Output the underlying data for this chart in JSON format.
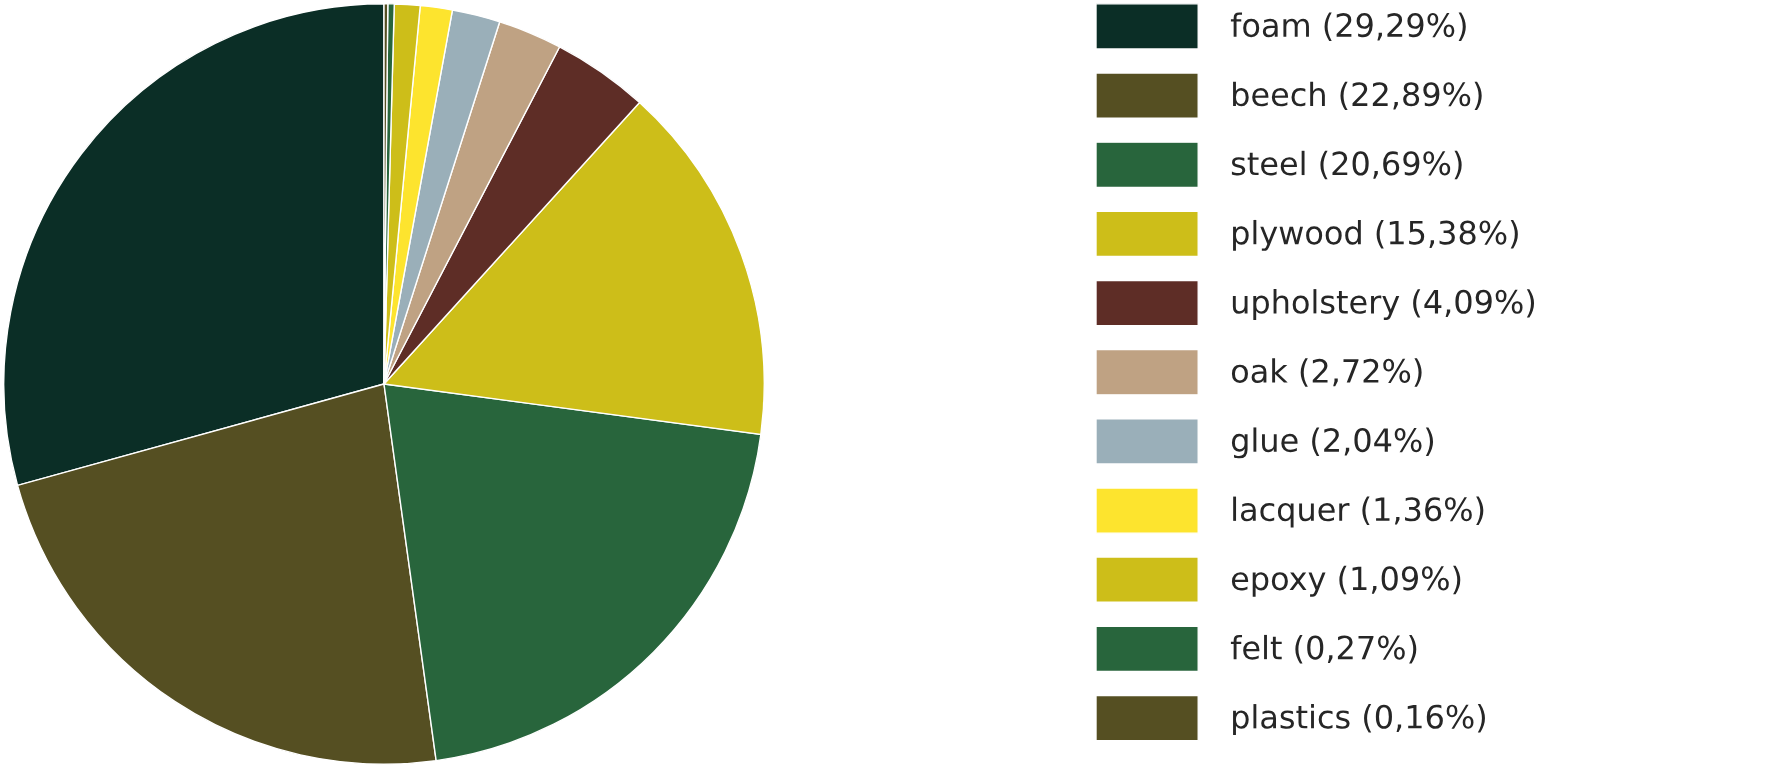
{
  "chart_data": {
    "type": "pie",
    "categories": [
      "foam (29,29%)",
      "beech (22,89%)",
      "steel (20,69%)",
      "plywood (15,38%)",
      "upholstery (4,09%)",
      "oak (2,72%)",
      "glue (2,04%)",
      "lacquer (1,36%)",
      "epoxy (1,09%)",
      "felt (0,27%)",
      "plastics (0,16%)"
    ],
    "values": [
      29.29,
      22.89,
      20.69,
      15.38,
      4.09,
      2.72,
      2.04,
      1.36,
      1.09,
      0.27,
      0.16
    ],
    "colors": [
      "#0b2e26",
      "#554f22",
      "#28653c",
      "#cdbe19",
      "#5e2d26",
      "#bfa283",
      "#9aafb9",
      "#fde42e",
      "#cdbe19",
      "#28653c",
      "#554f22"
    ],
    "legend": "right"
  }
}
